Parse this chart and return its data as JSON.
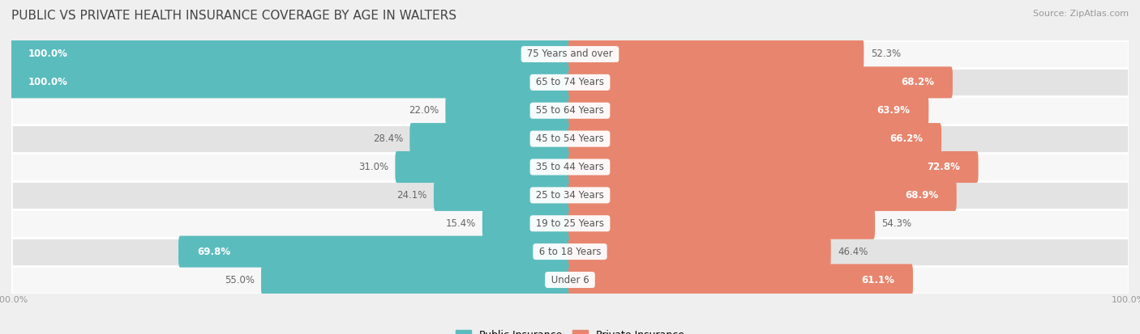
{
  "title": "PUBLIC VS PRIVATE HEALTH INSURANCE COVERAGE BY AGE IN WALTERS",
  "source": "Source: ZipAtlas.com",
  "categories": [
    "Under 6",
    "6 to 18 Years",
    "19 to 25 Years",
    "25 to 34 Years",
    "35 to 44 Years",
    "45 to 54 Years",
    "55 to 64 Years",
    "65 to 74 Years",
    "75 Years and over"
  ],
  "public_values": [
    55.0,
    69.8,
    15.4,
    24.1,
    31.0,
    28.4,
    22.0,
    100.0,
    100.0
  ],
  "private_values": [
    61.1,
    46.4,
    54.3,
    68.9,
    72.8,
    66.2,
    63.9,
    68.2,
    52.3
  ],
  "public_color": "#5bbcbd",
  "private_color": "#e8856e",
  "bg_color": "#efefef",
  "row_bg_light": "#f7f7f7",
  "row_bg_dark": "#e3e3e3",
  "title_fontsize": 11,
  "label_fontsize": 8.5,
  "bar_height": 0.52,
  "max_value": 100.0,
  "pub_label_inside_threshold": 60,
  "priv_label_inside_threshold": 60
}
